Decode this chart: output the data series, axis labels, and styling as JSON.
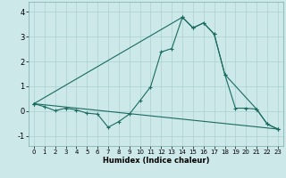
{
  "xlabel": "Humidex (Indice chaleur)",
  "background_color": "#cce8e8",
  "line_color": "#1a6b60",
  "grid_color": "#b0d4d4",
  "xlim": [
    -0.5,
    23.5
  ],
  "ylim": [
    -1.4,
    4.4
  ],
  "xticks": [
    0,
    1,
    2,
    3,
    4,
    5,
    6,
    7,
    8,
    9,
    10,
    11,
    12,
    13,
    14,
    15,
    16,
    17,
    18,
    19,
    20,
    21,
    22,
    23
  ],
  "yticks": [
    -1,
    0,
    1,
    2,
    3,
    4
  ],
  "line1_x": [
    0,
    1,
    2,
    3,
    4,
    5,
    6,
    7,
    8,
    9,
    10,
    11,
    12,
    13,
    14,
    15,
    16,
    17,
    18,
    19,
    20,
    21,
    22,
    23
  ],
  "line1_y": [
    0.3,
    0.18,
    0.02,
    0.12,
    0.05,
    -0.08,
    -0.12,
    -0.65,
    -0.42,
    -0.12,
    0.42,
    0.98,
    2.38,
    2.52,
    3.78,
    3.35,
    3.55,
    3.1,
    1.48,
    0.12,
    0.12,
    0.08,
    -0.52,
    -0.72
  ],
  "line2_x": [
    0,
    14,
    15,
    16,
    17,
    18,
    21,
    22,
    23
  ],
  "line2_y": [
    0.3,
    3.78,
    3.35,
    3.55,
    3.1,
    1.48,
    0.08,
    -0.52,
    -0.72
  ],
  "line3_x": [
    0,
    23
  ],
  "line3_y": [
    0.3,
    -0.72
  ]
}
